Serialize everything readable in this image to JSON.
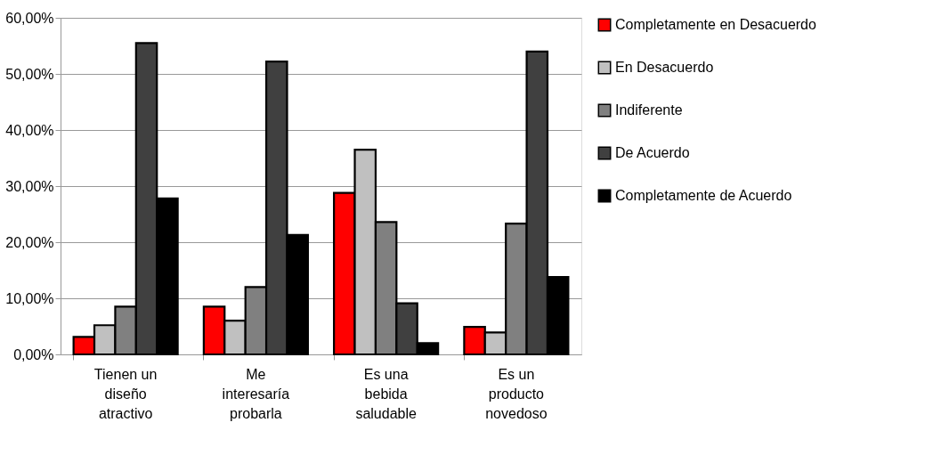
{
  "chart_data": {
    "type": "bar",
    "categories": [
      "Tienen un diseño atractivo",
      "Me interesaría probarla",
      "Es una bebida saludable",
      "Es un producto novedoso"
    ],
    "series": [
      {
        "name": "Completamente en Desacuerdo",
        "color": "#ff0000",
        "values": [
          3.1,
          8.5,
          28.8,
          4.9
        ]
      },
      {
        "name": "En Desacuerdo",
        "color": "#c0c0c0",
        "values": [
          5.2,
          6.0,
          36.5,
          3.9
        ]
      },
      {
        "name": "Indiferente",
        "color": "#808080",
        "values": [
          8.5,
          12.0,
          23.6,
          23.3
        ]
      },
      {
        "name": "De Acuerdo",
        "color": "#404040",
        "values": [
          55.5,
          52.2,
          9.1,
          54.0
        ]
      },
      {
        "name": "Completamente de Acuerdo",
        "color": "#000000",
        "values": [
          27.8,
          21.3,
          2.0,
          13.8
        ]
      }
    ],
    "ylim": [
      0,
      60
    ],
    "yticks": [
      {
        "value": 0,
        "label": "0,00%"
      },
      {
        "value": 10,
        "label": "10,00%"
      },
      {
        "value": 20,
        "label": "20,00%"
      },
      {
        "value": 30,
        "label": "30,00%"
      },
      {
        "value": 40,
        "label": "40,00%"
      },
      {
        "value": 50,
        "label": "50,00%"
      },
      {
        "value": 60,
        "label": "60,00%"
      }
    ],
    "grid": "y",
    "legend": "right"
  }
}
